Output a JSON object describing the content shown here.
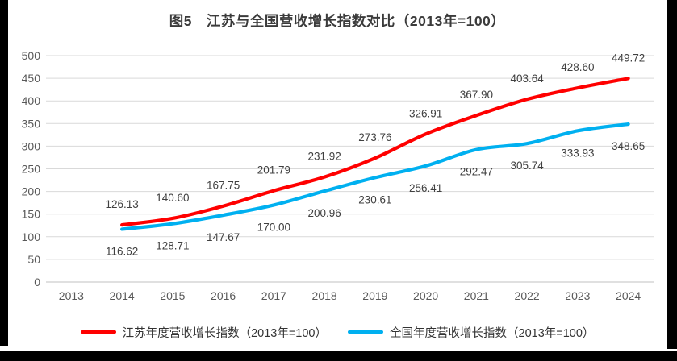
{
  "title": "图5　江苏与全国营收增长指数对比（2013年=100）",
  "chart_data": {
    "type": "line",
    "title": "图5　江苏与全国营收增长指数对比（2013年=100）",
    "categories": [
      "2013",
      "2014",
      "2015",
      "2016",
      "2017",
      "2018",
      "2019",
      "2020",
      "2021",
      "2022",
      "2023",
      "2024"
    ],
    "series": [
      {
        "name": "江苏年度营收增长指数（2013年=100）",
        "color": "#ff0000",
        "label_position": "above",
        "values": [
          null,
          126.13,
          140.6,
          167.75,
          201.79,
          231.92,
          273.76,
          326.91,
          367.9,
          403.64,
          428.6,
          449.72
        ]
      },
      {
        "name": "全国年度营收增长指数（2013年=100）",
        "color": "#00b0f0",
        "label_position": "below",
        "values": [
          null,
          116.62,
          128.71,
          147.67,
          170.0,
          200.96,
          230.61,
          256.41,
          292.47,
          305.74,
          333.93,
          348.65
        ]
      }
    ],
    "ylim": [
      0,
      500
    ],
    "ytick_step": 50,
    "grid": true,
    "legend_position": "bottom",
    "colors": {
      "grid": "#d9d9d9",
      "axis": "#c0c0c0",
      "tick_label": "#595959",
      "data_label": "#404040",
      "title": "#3b3b3b",
      "frame": "#000000"
    }
  }
}
